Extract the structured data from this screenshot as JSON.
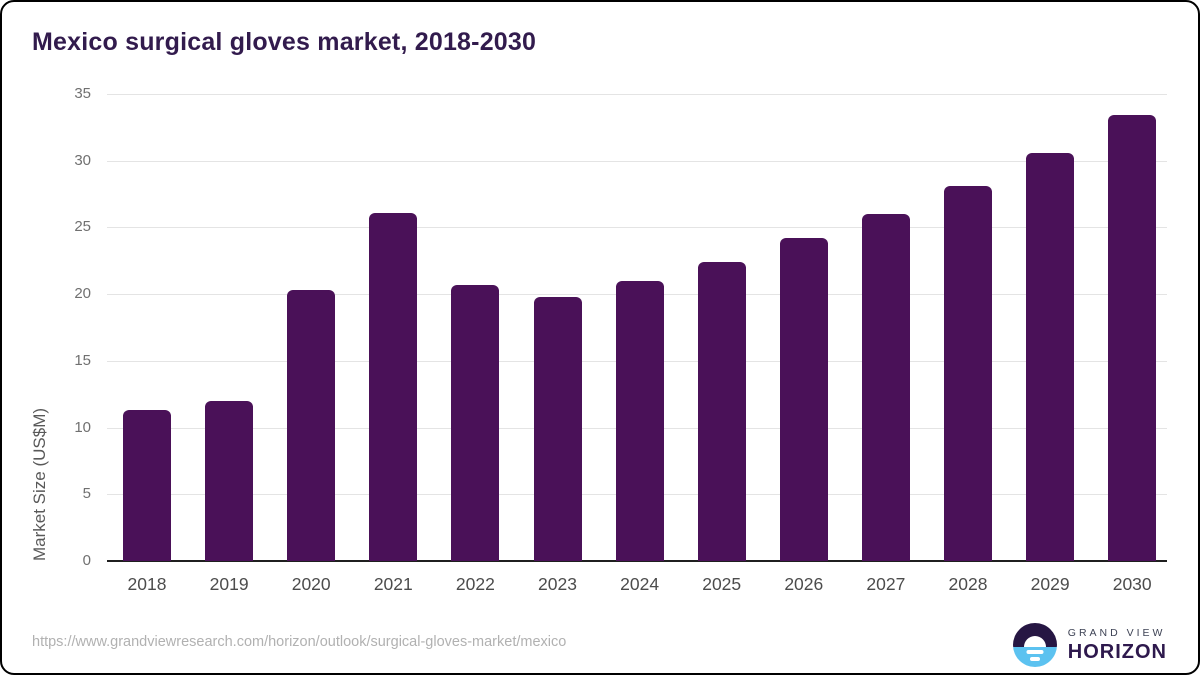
{
  "title": "Mexico surgical gloves market, 2018-2030",
  "chart_data": {
    "type": "bar",
    "categories": [
      "2018",
      "2019",
      "2020",
      "2021",
      "2022",
      "2023",
      "2024",
      "2025",
      "2026",
      "2027",
      "2028",
      "2029",
      "2030"
    ],
    "values": [
      11.3,
      12.0,
      20.3,
      26.1,
      20.7,
      19.8,
      21.0,
      22.4,
      24.2,
      26.0,
      28.1,
      30.6,
      33.4
    ],
    "title": "Mexico surgical gloves market, 2018-2030",
    "xlabel": "",
    "ylabel": "Market Size (US$M)",
    "ylim": [
      0,
      35
    ],
    "yticks": [
      0,
      5,
      10,
      15,
      20,
      25,
      30,
      35
    ],
    "grid": "horizontal",
    "legend": "none"
  },
  "colors": {
    "bar": "#4a1158",
    "title": "#321b4d",
    "axis": "#1f1f1f",
    "gridline": "#e4e4e4",
    "tick_text": "#707070",
    "xtick_text": "#4c4c4c",
    "url_text": "#b1b1b1",
    "logo_dark": "#261643",
    "logo_blue": "#5cc2f0"
  },
  "footer": {
    "source_url": "https://www.grandviewresearch.com/horizon/outlook/surgical-gloves-market/mexico",
    "logo": {
      "line1": "GRAND VIEW",
      "line2": "HORIZON"
    }
  }
}
